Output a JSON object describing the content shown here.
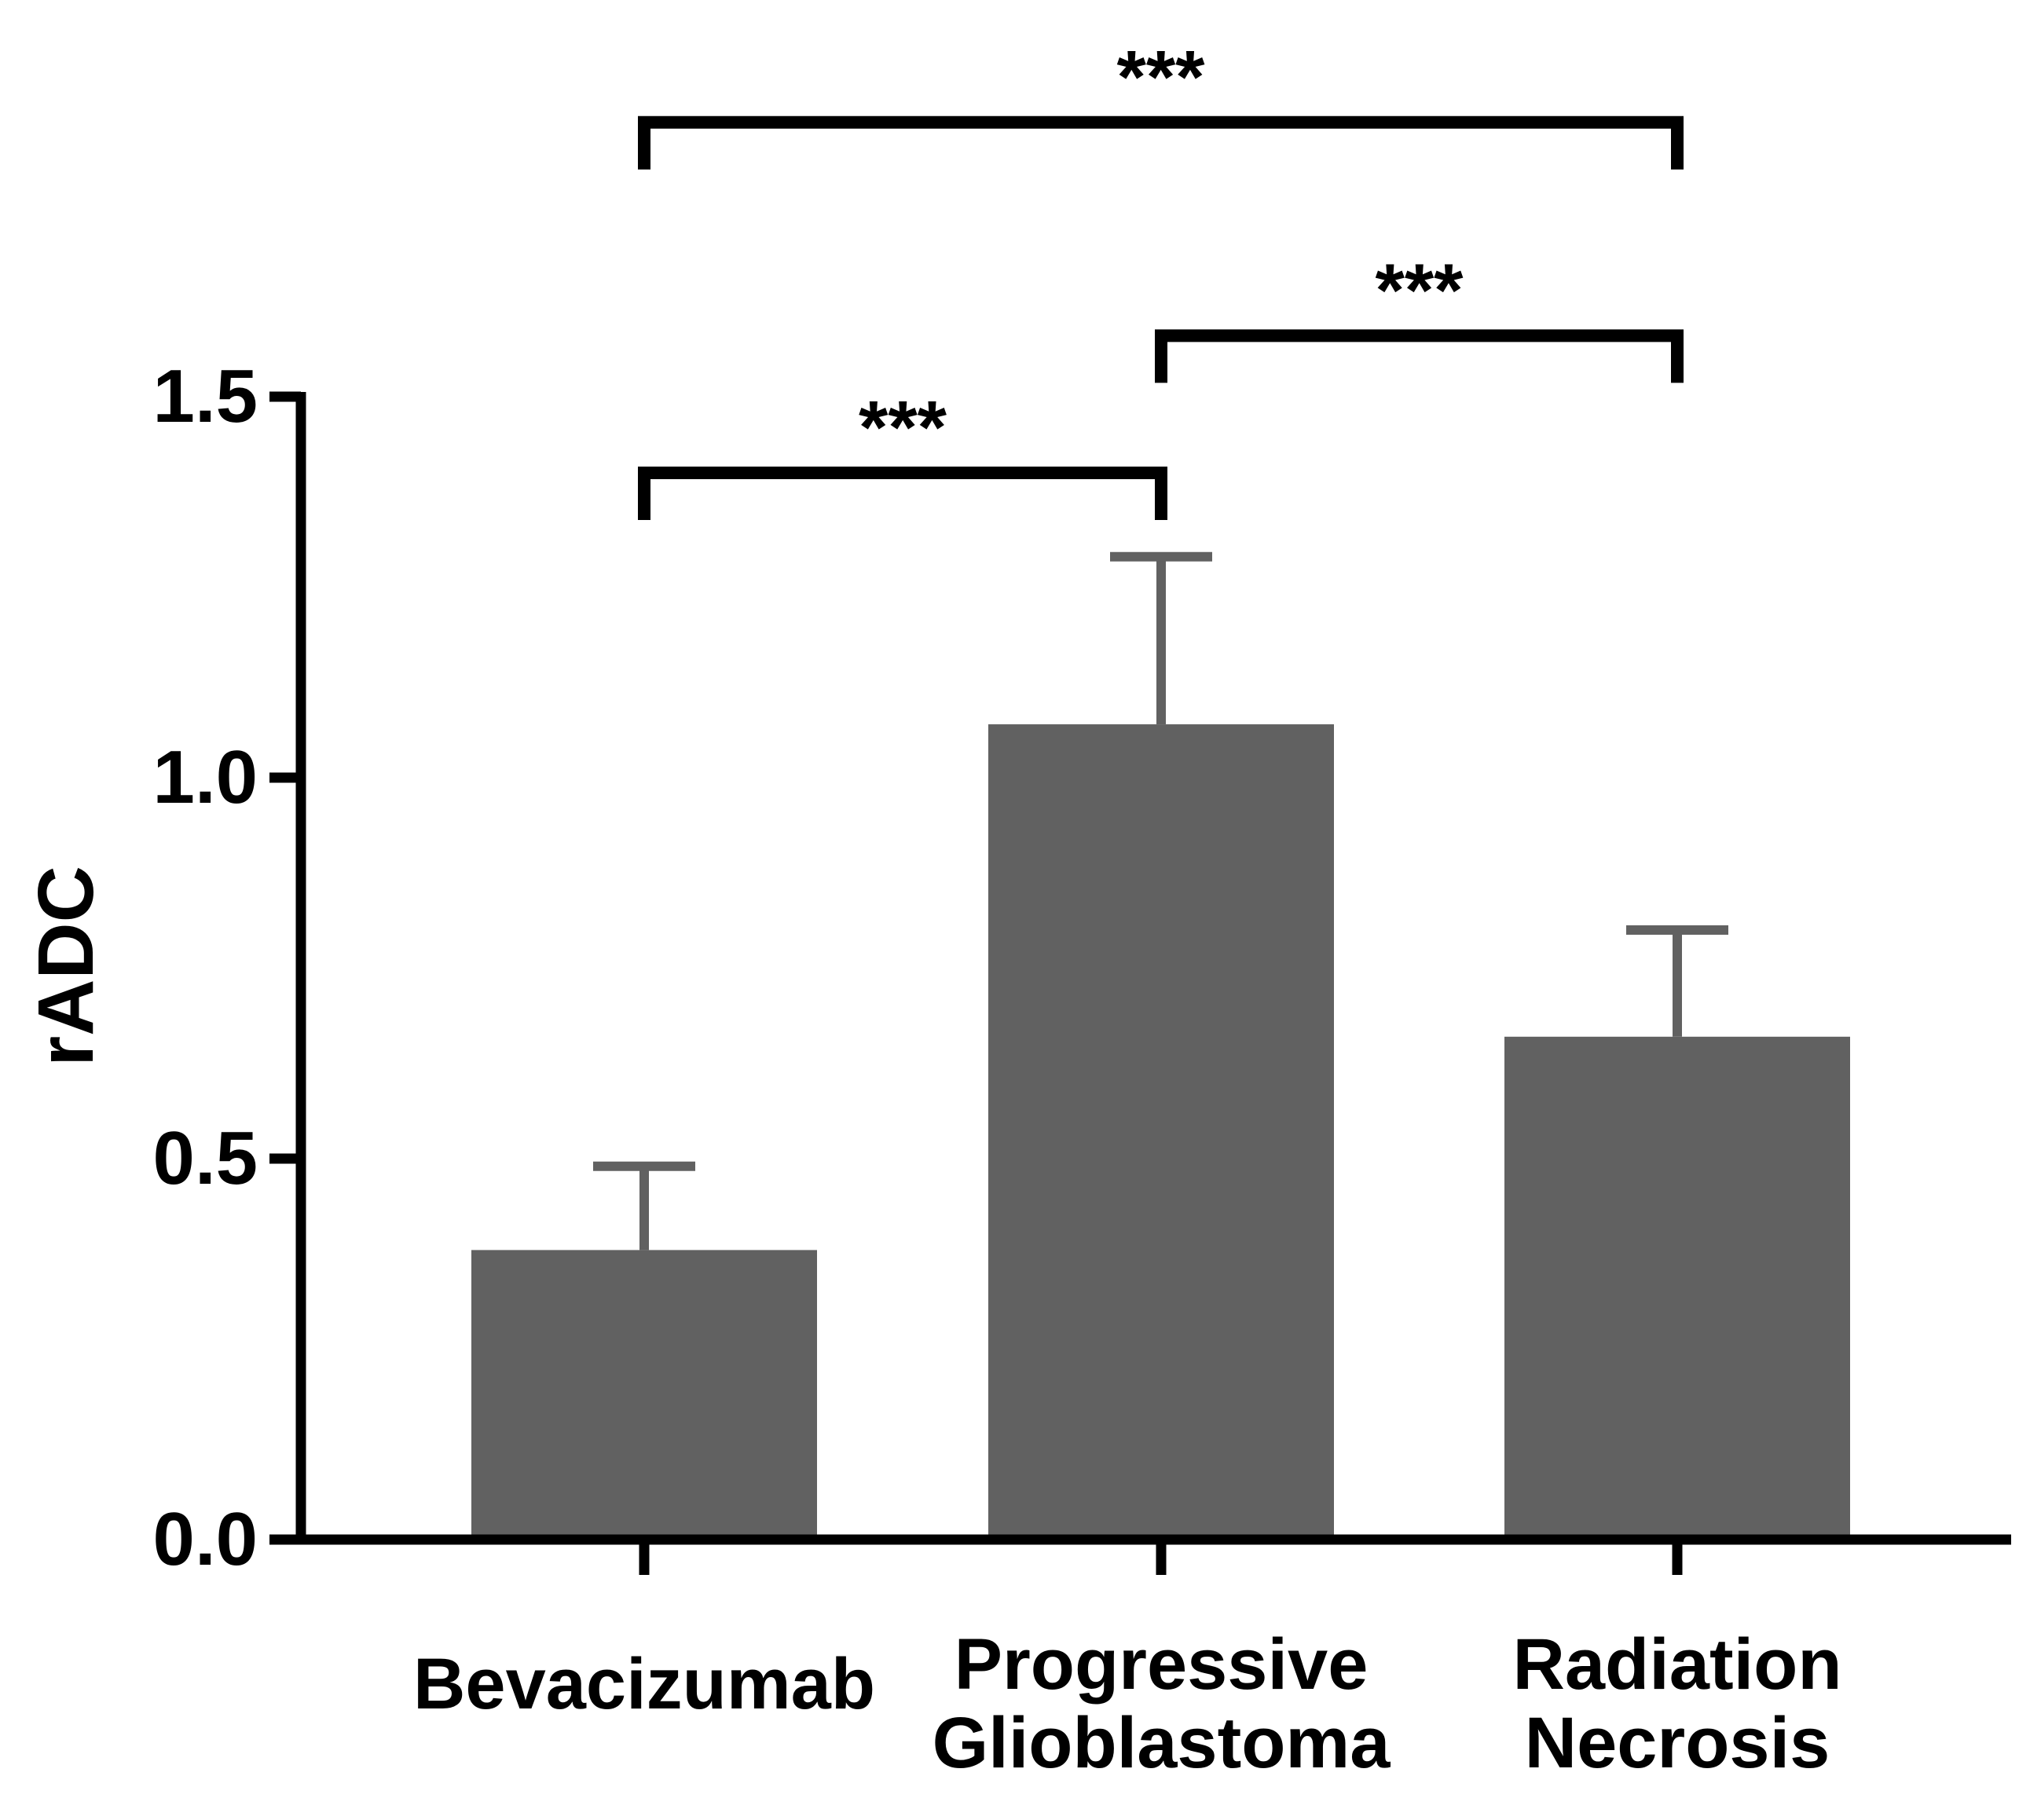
{
  "chart_data": {
    "type": "bar",
    "title": "",
    "xlabel": "",
    "ylabel": "rADC",
    "ylim": [
      0,
      1.5
    ],
    "yticks": [
      0.0,
      0.5,
      1.0,
      1.5
    ],
    "ytick_labels": [
      "0.0",
      "0.5",
      "1.0",
      "1.5"
    ],
    "grid": false,
    "categories": [
      [
        "Bevacizumab"
      ],
      [
        "Progressive",
        "Glioblastoma"
      ],
      [
        "Radiation",
        "Necrosis"
      ]
    ],
    "values": [
      0.38,
      1.07,
      0.66
    ],
    "errors": [
      0.11,
      0.22,
      0.14
    ],
    "bar_color": "#616161",
    "significance": [
      {
        "from": 0,
        "to": 2,
        "label": "***",
        "bracket_y": 1.86
      },
      {
        "from": 1,
        "to": 2,
        "label": "***",
        "bracket_y": 1.58
      },
      {
        "from": 0,
        "to": 1,
        "label": "***",
        "bracket_y": 1.4
      }
    ]
  }
}
